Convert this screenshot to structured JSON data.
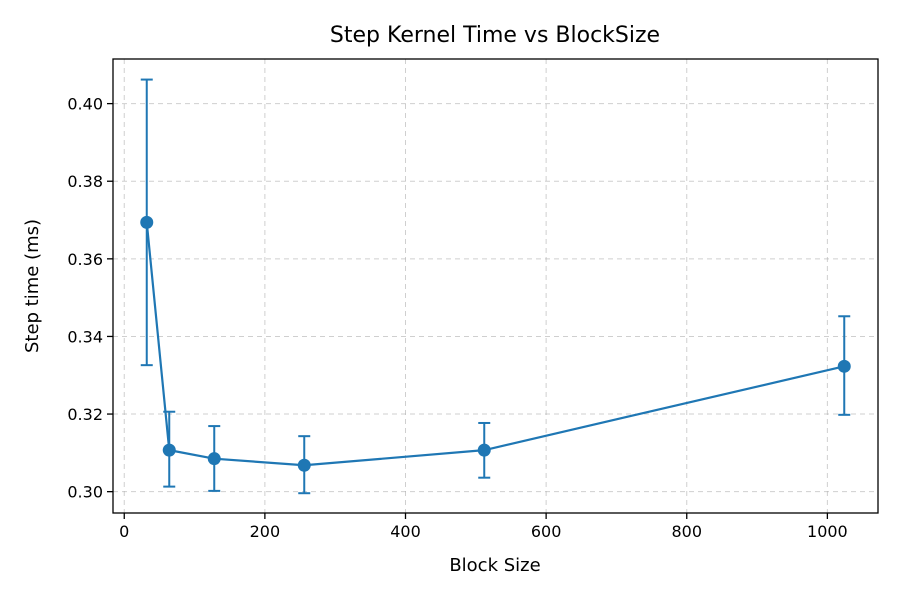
{
  "chart_data": {
    "type": "line",
    "title": "Step Kernel Time vs BlockSize",
    "xlabel": "Block Size",
    "ylabel": "Step time (ms)",
    "xlim": [
      -16,
      1072
    ],
    "ylim": [
      0.2945,
      0.4115
    ],
    "xticks": [
      0,
      200,
      400,
      600,
      800,
      1000
    ],
    "yticks": [
      0.3,
      0.32,
      0.34,
      0.36,
      0.38,
      0.4
    ],
    "xtick_labels": [
      "0",
      "200",
      "400",
      "600",
      "800",
      "1000"
    ],
    "ytick_labels": [
      "0.30",
      "0.32",
      "0.34",
      "0.36",
      "0.38",
      "0.40"
    ],
    "grid": true,
    "series": [
      {
        "color": "#1f77b4",
        "x": [
          32,
          64,
          128,
          256,
          512,
          1024
        ],
        "y": [
          0.3694,
          0.3107,
          0.3085,
          0.3068,
          0.3107,
          0.3323
        ],
        "err_low": [
          0.3326,
          0.3013,
          0.3002,
          0.2996,
          0.3036,
          0.3198
        ],
        "err_high": [
          0.4062,
          0.3206,
          0.3169,
          0.3143,
          0.3177,
          0.3452
        ]
      }
    ]
  }
}
